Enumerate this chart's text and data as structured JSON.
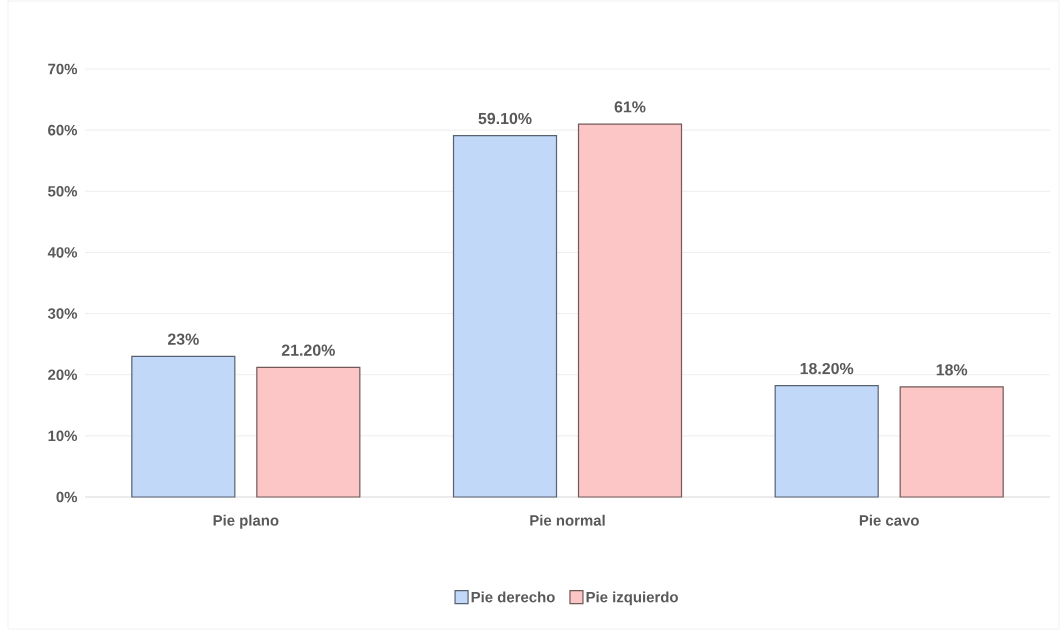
{
  "chart_data": {
    "type": "bar",
    "categories": [
      "Pie plano",
      "Pie normal",
      "Pie cavo"
    ],
    "series": [
      {
        "name": "Pie derecho",
        "color": "#c2d8f8",
        "values": [
          23,
          59.1,
          18.2
        ],
        "value_labels": [
          "23%",
          "59.10%",
          "18.20%"
        ]
      },
      {
        "name": "Pie izquierdo",
        "color": "#fcc6c6",
        "values": [
          21.2,
          61,
          18
        ],
        "value_labels": [
          "21.20%",
          "61%",
          "18%"
        ]
      }
    ],
    "ylim": [
      0,
      70
    ],
    "yticks": [
      {
        "value": 0,
        "label": "0%"
      },
      {
        "value": 10,
        "label": "10%"
      },
      {
        "value": 20,
        "label": "20%"
      },
      {
        "value": 30,
        "label": "30%"
      },
      {
        "value": 40,
        "label": "40%"
      },
      {
        "value": 50,
        "label": "50%"
      },
      {
        "value": 60,
        "label": "60%"
      },
      {
        "value": 70,
        "label": "70%"
      }
    ],
    "grid": "y",
    "legend": "bottom"
  }
}
